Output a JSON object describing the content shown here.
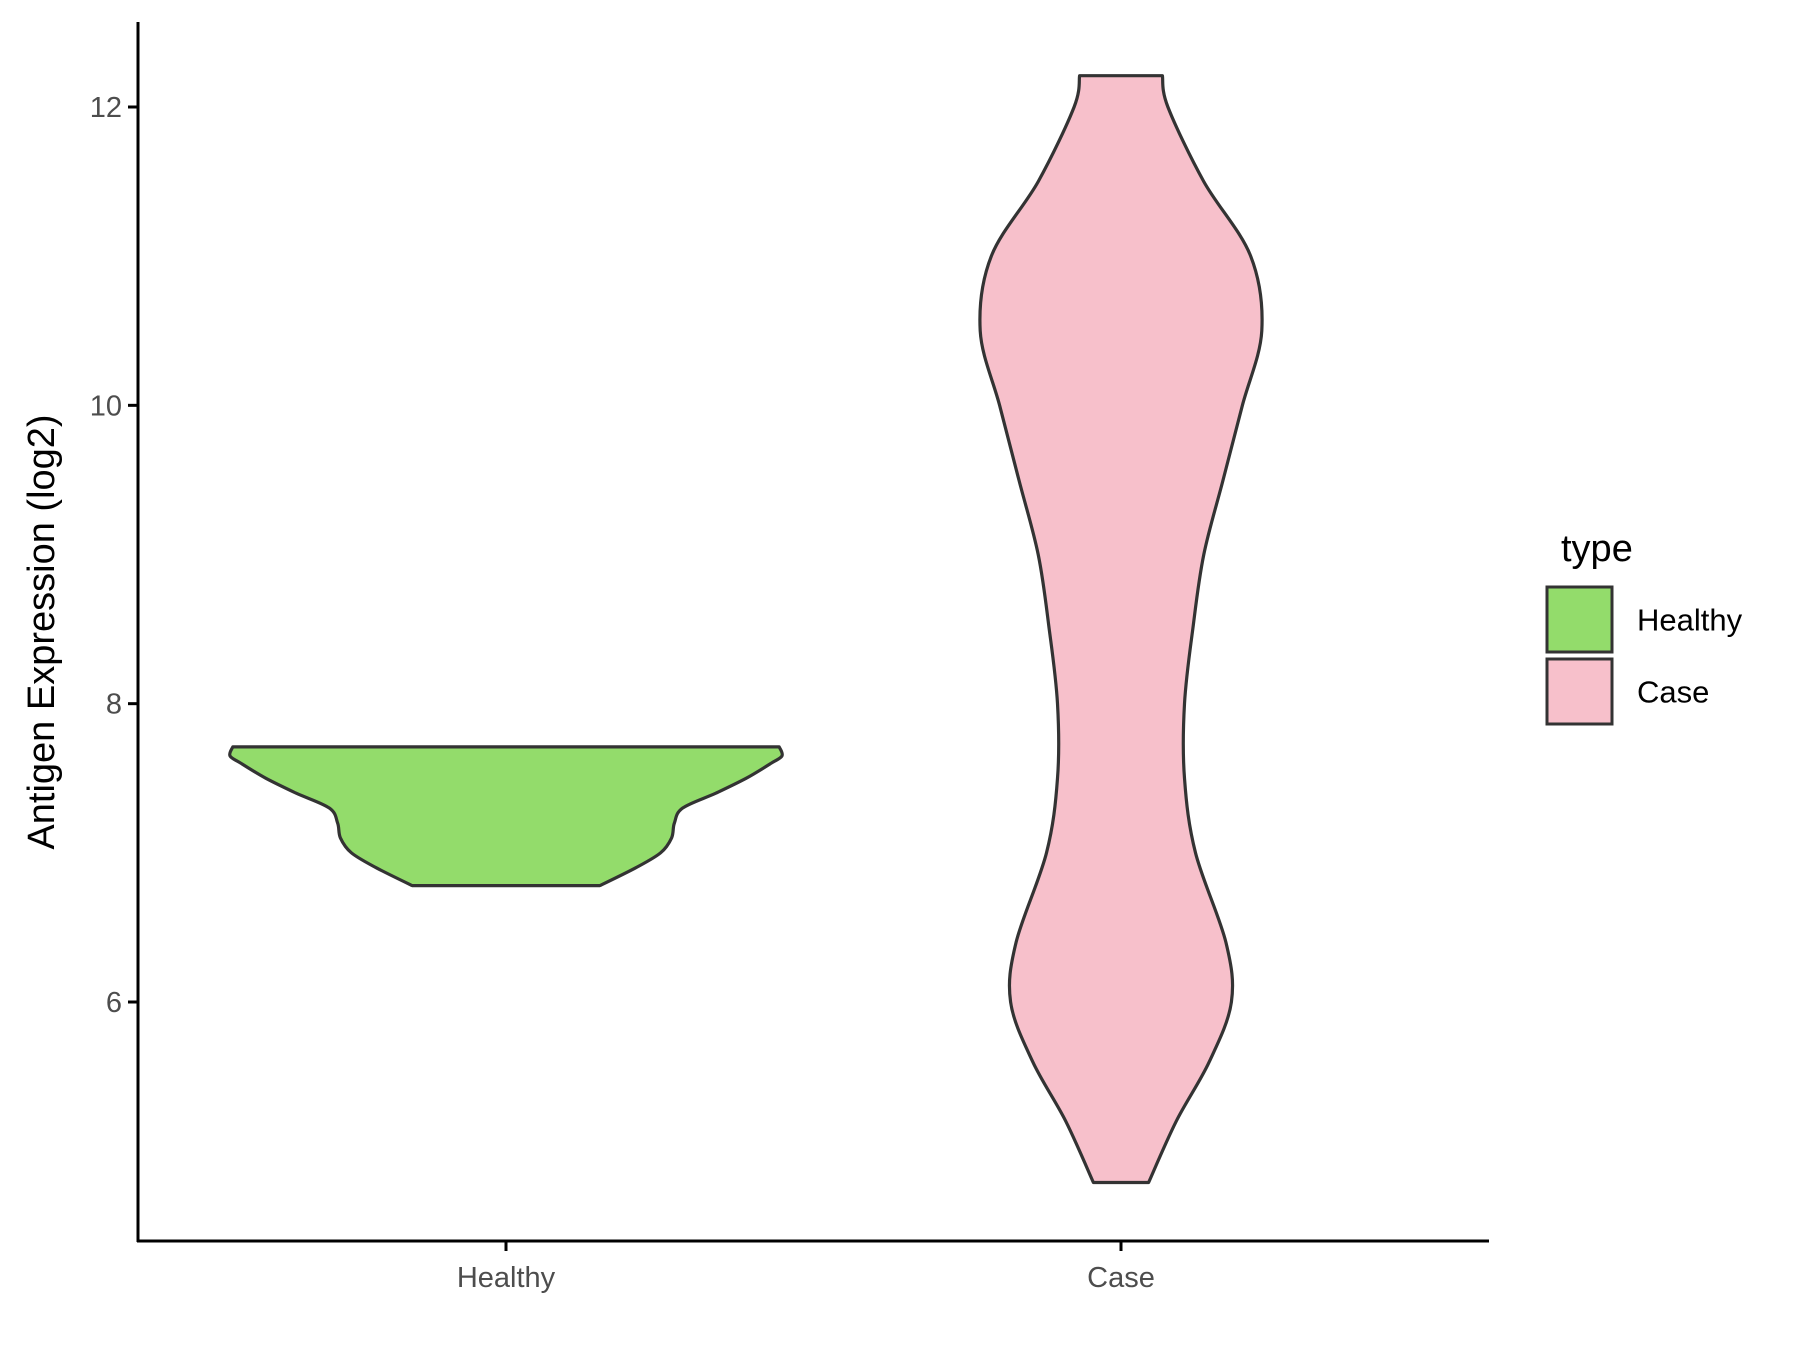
{
  "chart_data": {
    "type": "violin",
    "ylabel": "Antigen Expression (log2)",
    "xlabel": "",
    "categories": [
      "Healthy",
      "Case"
    ],
    "yticks": [
      6,
      8,
      10,
      12
    ],
    "ylim": [
      4.5,
      12.6
    ],
    "legend": {
      "title": "type",
      "position": "right",
      "items": [
        {
          "label": "Healthy",
          "color": "#93dc6b"
        },
        {
          "label": "Case",
          "color": "#f7c0cb"
        }
      ]
    },
    "grid": false,
    "series": [
      {
        "name": "Healthy",
        "color": "#93dc6b",
        "min": 6.78,
        "max": 7.71,
        "density": [
          [
            6.78,
            0.34
          ],
          [
            6.9,
            0.47
          ],
          [
            7.0,
            0.56
          ],
          [
            7.1,
            0.6
          ],
          [
            7.2,
            0.61
          ],
          [
            7.3,
            0.64
          ],
          [
            7.4,
            0.76
          ],
          [
            7.5,
            0.87
          ],
          [
            7.6,
            0.96
          ],
          [
            7.65,
            1.0
          ],
          [
            7.71,
            0.99
          ]
        ]
      },
      {
        "name": "Case",
        "color": "#f7c0cb",
        "min": 4.79,
        "max": 12.21,
        "density": [
          [
            4.79,
            0.1
          ],
          [
            5.2,
            0.2
          ],
          [
            5.6,
            0.32
          ],
          [
            6.0,
            0.4
          ],
          [
            6.4,
            0.38
          ],
          [
            7.0,
            0.27
          ],
          [
            7.5,
            0.23
          ],
          [
            8.0,
            0.23
          ],
          [
            8.5,
            0.26
          ],
          [
            9.0,
            0.3
          ],
          [
            9.5,
            0.37
          ],
          [
            10.0,
            0.44
          ],
          [
            10.5,
            0.51
          ],
          [
            11.0,
            0.47
          ],
          [
            11.5,
            0.3
          ],
          [
            12.0,
            0.17
          ],
          [
            12.21,
            0.15
          ]
        ]
      }
    ]
  }
}
